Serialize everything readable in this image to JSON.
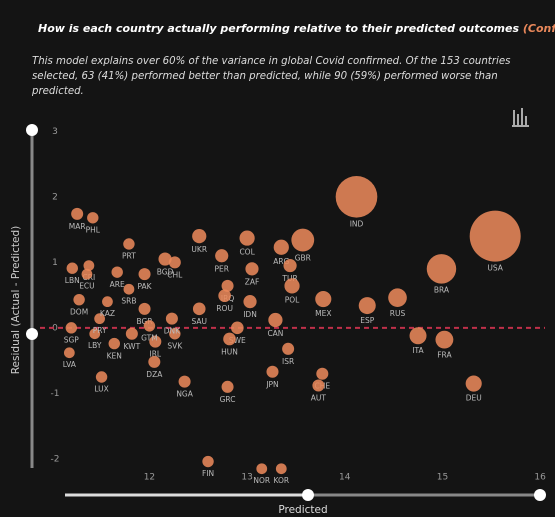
{
  "chart_data": {
    "type": "scatter",
    "title": "How is each country actually performing relative to their predicted outcomes ",
    "title_highlight": "(Confirmed)",
    "title_end": " ?",
    "subtitle": "This model explains over 60% of the variance in global Covid confirmed. Of the 153 countries selected, 63 (41%) performed better than predicted, while 90 (59%) performed worse than predicted.",
    "x_label": "Predicted",
    "y_label": "Residual (Actual - Predicted)",
    "color": "#e8875a",
    "hline": 0,
    "hline_color": "#c0304a",
    "xlim": [
      10.9,
      16.05
    ],
    "ylim": [
      -2.2,
      3.05
    ],
    "xticks": [
      12,
      13,
      14,
      15,
      16
    ],
    "yticks": [
      3,
      2,
      1,
      0,
      -1,
      -2
    ],
    "labels": [
      "MAR",
      "PHL",
      "PRT",
      "LBN",
      "CRI",
      "ECU",
      "ARE",
      "PAK",
      "BGD",
      "CHL",
      "UKR",
      "COL",
      "ARG",
      "GBR",
      "TUR",
      "PER",
      "ZAF",
      "IND",
      "USA",
      "BRA",
      "RUS",
      "ESP",
      "MEX",
      "POL",
      "ITA",
      "FRA",
      "DEU",
      "IRQ",
      "IDN",
      "ROU",
      "CAN",
      "SWE",
      "HUN",
      "ISR",
      "JPN",
      "CHE",
      "AUT",
      "GRC",
      "NGA",
      "DZA",
      "IRL",
      "SVK",
      "DNK",
      "SAU",
      "BGR",
      "GTM",
      "KWT",
      "KEN",
      "LBY",
      "PRY",
      "SGP",
      "LVA",
      "LUX",
      "DOM",
      "KAZ",
      "SRB",
      "FIN",
      "NOR",
      "KOR"
    ],
    "x": [
      11.26,
      11.42,
      11.79,
      11.21,
      11.38,
      11.36,
      11.67,
      11.95,
      12.16,
      12.26,
      12.51,
      13.0,
      13.35,
      13.57,
      13.44,
      12.74,
      13.05,
      14.12,
      15.54,
      14.99,
      14.54,
      14.23,
      13.78,
      13.46,
      14.75,
      15.02,
      15.32,
      12.8,
      13.03,
      12.77,
      13.29,
      12.9,
      12.82,
      13.42,
      13.26,
      13.77,
      13.73,
      12.8,
      12.36,
      12.05,
      12.06,
      12.26,
      12.23,
      12.51,
      11.95,
      12.0,
      11.82,
      11.64,
      11.44,
      11.49,
      11.2,
      11.18,
      11.51,
      11.28,
      11.57,
      11.79,
      12.6,
      13.15,
      13.35
    ],
    "values": [
      1.74,
      1.68,
      1.28,
      0.91,
      0.95,
      0.82,
      0.85,
      0.82,
      1.05,
      1.0,
      1.4,
      1.37,
      1.23,
      1.34,
      0.95,
      1.1,
      0.9,
      2.0,
      1.4,
      0.9,
      0.46,
      0.34,
      0.44,
      0.64,
      -0.12,
      -0.18,
      -0.85,
      0.64,
      0.4,
      0.49,
      0.12,
      0.0,
      -0.17,
      -0.32,
      -0.67,
      -0.7,
      -0.88,
      -0.9,
      -0.82,
      -0.52,
      -0.21,
      -0.09,
      0.14,
      0.29,
      0.29,
      0.03,
      -0.09,
      -0.24,
      -0.09,
      0.14,
      0.0,
      -0.38,
      -0.75,
      0.43,
      0.4,
      0.59,
      -2.04,
      -2.15,
      -2.15
    ],
    "sizes": [
      50,
      45,
      45,
      45,
      40,
      40,
      45,
      50,
      60,
      50,
      70,
      80,
      80,
      180,
      60,
      60,
      60,
      600,
      900,
      300,
      120,
      100,
      90,
      80,
      100,
      110,
      90,
      50,
      60,
      55,
      70,
      55,
      55,
      50,
      50,
      50,
      50,
      50,
      50,
      50,
      50,
      45,
      50,
      55,
      50,
      45,
      50,
      45,
      40,
      40,
      45,
      40,
      45,
      45,
      40,
      40,
      45,
      40,
      40
    ]
  }
}
